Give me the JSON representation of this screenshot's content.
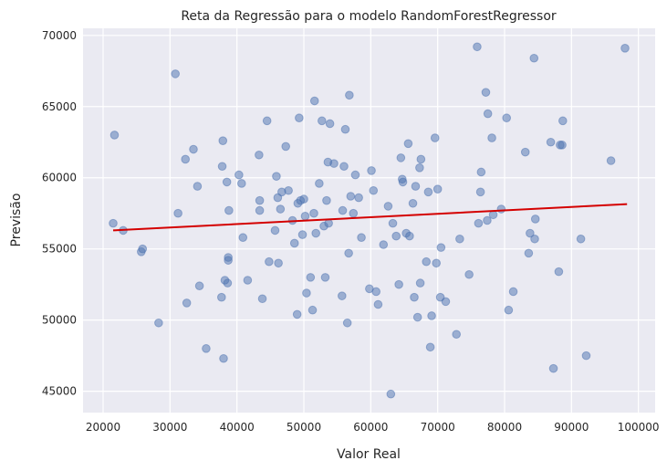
{
  "chart_data": {
    "type": "scatter",
    "title": "Reta da Regressão para o modelo RandomForestRegressor",
    "xlabel": "Valor Real",
    "ylabel": "Previsão",
    "xlim": [
      17000,
      102500
    ],
    "ylim": [
      43500,
      70500
    ],
    "xticks": [
      20000,
      30000,
      40000,
      50000,
      60000,
      70000,
      80000,
      90000,
      100000
    ],
    "yticks": [
      45000,
      50000,
      55000,
      60000,
      65000,
      70000
    ],
    "grid": true,
    "background_color": "#EAEAF2",
    "point_color": "#4C72B0",
    "line_color": "#D40000",
    "regression_line": {
      "x": [
        21500,
        98300
      ],
      "y": [
        56300,
        58150
      ]
    },
    "points": [
      [
        21500,
        56800
      ],
      [
        21700,
        63000
      ],
      [
        23000,
        56300
      ],
      [
        25700,
        54800
      ],
      [
        25900,
        55000
      ],
      [
        28300,
        49800
      ],
      [
        30800,
        67300
      ],
      [
        31200,
        57500
      ],
      [
        32300,
        61300
      ],
      [
        32500,
        51200
      ],
      [
        33500,
        62000
      ],
      [
        34100,
        59400
      ],
      [
        34400,
        52400
      ],
      [
        35400,
        48000
      ],
      [
        37700,
        51600
      ],
      [
        37800,
        60800
      ],
      [
        37900,
        62600
      ],
      [
        38000,
        47300
      ],
      [
        38200,
        52800
      ],
      [
        38500,
        59700
      ],
      [
        38600,
        52600
      ],
      [
        38700,
        54400
      ],
      [
        38700,
        54200
      ],
      [
        38800,
        57700
      ],
      [
        40300,
        60200
      ],
      [
        40700,
        59600
      ],
      [
        40900,
        55800
      ],
      [
        41600,
        52800
      ],
      [
        43300,
        61600
      ],
      [
        43400,
        57700
      ],
      [
        43400,
        58400
      ],
      [
        43800,
        51500
      ],
      [
        44500,
        64000
      ],
      [
        44800,
        54100
      ],
      [
        45700,
        56300
      ],
      [
        45900,
        60100
      ],
      [
        46100,
        58600
      ],
      [
        46200,
        54000
      ],
      [
        46500,
        57800
      ],
      [
        46700,
        59000
      ],
      [
        47300,
        62200
      ],
      [
        47700,
        59100
      ],
      [
        48300,
        57000
      ],
      [
        48600,
        55400
      ],
      [
        49000,
        50400
      ],
      [
        49100,
        58200
      ],
      [
        49300,
        64200
      ],
      [
        49500,
        58400
      ],
      [
        49800,
        56000
      ],
      [
        50000,
        58500
      ],
      [
        50200,
        57300
      ],
      [
        50400,
        51900
      ],
      [
        51000,
        53000
      ],
      [
        51300,
        50700
      ],
      [
        51500,
        57500
      ],
      [
        51600,
        65400
      ],
      [
        51800,
        56100
      ],
      [
        52300,
        59600
      ],
      [
        52700,
        64000
      ],
      [
        53000,
        56600
      ],
      [
        53200,
        53000
      ],
      [
        53400,
        58400
      ],
      [
        53600,
        61100
      ],
      [
        53700,
        56800
      ],
      [
        53900,
        63800
      ],
      [
        54500,
        61000
      ],
      [
        55700,
        51700
      ],
      [
        55800,
        57700
      ],
      [
        56000,
        60800
      ],
      [
        56200,
        63400
      ],
      [
        56500,
        49800
      ],
      [
        56700,
        54700
      ],
      [
        56800,
        65800
      ],
      [
        57000,
        58700
      ],
      [
        57400,
        57500
      ],
      [
        57700,
        60200
      ],
      [
        58200,
        58600
      ],
      [
        58600,
        55800
      ],
      [
        59800,
        52200
      ],
      [
        60100,
        60500
      ],
      [
        60400,
        59100
      ],
      [
        60800,
        52000
      ],
      [
        61100,
        51100
      ],
      [
        61900,
        55300
      ],
      [
        62600,
        58000
      ],
      [
        63000,
        44800
      ],
      [
        63300,
        56800
      ],
      [
        63800,
        55900
      ],
      [
        64200,
        52500
      ],
      [
        64500,
        61400
      ],
      [
        64700,
        59900
      ],
      [
        64800,
        59700
      ],
      [
        65300,
        56100
      ],
      [
        65600,
        62400
      ],
      [
        65800,
        55900
      ],
      [
        66300,
        58200
      ],
      [
        66500,
        51600
      ],
      [
        66700,
        59400
      ],
      [
        67000,
        50200
      ],
      [
        67300,
        60700
      ],
      [
        67400,
        52600
      ],
      [
        67500,
        61300
      ],
      [
        68300,
        54100
      ],
      [
        68600,
        59000
      ],
      [
        68900,
        48100
      ],
      [
        69100,
        50300
      ],
      [
        69600,
        62800
      ],
      [
        69800,
        54000
      ],
      [
        70000,
        59200
      ],
      [
        70400,
        51600
      ],
      [
        70500,
        55100
      ],
      [
        71200,
        51300
      ],
      [
        72800,
        49000
      ],
      [
        73300,
        55700
      ],
      [
        74700,
        53200
      ],
      [
        75900,
        69200
      ],
      [
        76100,
        56800
      ],
      [
        76400,
        59000
      ],
      [
        76500,
        60400
      ],
      [
        77200,
        66000
      ],
      [
        77400,
        57000
      ],
      [
        77500,
        64500
      ],
      [
        78100,
        62800
      ],
      [
        78300,
        57400
      ],
      [
        79500,
        57800
      ],
      [
        80300,
        64200
      ],
      [
        80600,
        50700
      ],
      [
        81300,
        52000
      ],
      [
        83100,
        61800
      ],
      [
        83600,
        54700
      ],
      [
        83800,
        56100
      ],
      [
        84400,
        68400
      ],
      [
        84500,
        55700
      ],
      [
        84600,
        57100
      ],
      [
        86900,
        62500
      ],
      [
        87300,
        46600
      ],
      [
        88100,
        53400
      ],
      [
        88300,
        62300
      ],
      [
        88600,
        62300
      ],
      [
        88700,
        64000
      ],
      [
        91400,
        55700
      ],
      [
        92200,
        47500
      ],
      [
        95900,
        61200
      ],
      [
        98000,
        69100
      ]
    ]
  }
}
